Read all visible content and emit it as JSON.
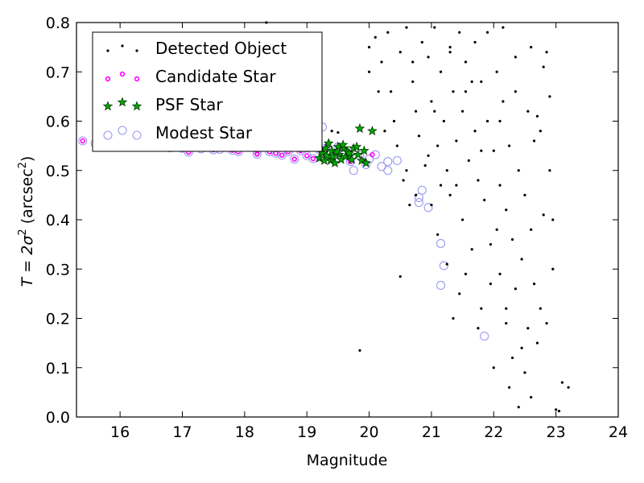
{
  "colors": {
    "detected": "#000000",
    "candidate": "#ff00ff",
    "psf_fill": "#00aa00",
    "psf_edge": "#003300",
    "modest": "#9a9af0"
  },
  "chart_data": {
    "type": "scatter",
    "title": "",
    "xlabel": "Magnitude",
    "ylabel_main": "T = 2σ",
    "ylabel_sup": "2",
    "ylabel_rest": " (arcsec",
    "ylabel_sup2": "2",
    "ylabel_end": ")",
    "xlim": [
      15.3,
      24
    ],
    "ylim": [
      0.0,
      0.8
    ],
    "x_ticks": [
      "16",
      "17",
      "18",
      "19",
      "20",
      "21",
      "22",
      "23",
      "24"
    ],
    "y_ticks": [
      "0.0",
      "0.1",
      "0.2",
      "0.3",
      "0.4",
      "0.5",
      "0.6",
      "0.7",
      "0.8"
    ],
    "grid": false,
    "legend_position": "top-left",
    "legend": [
      {
        "key": "detected",
        "label": "Detected Object"
      },
      {
        "key": "candidate",
        "label": "Candidate Star"
      },
      {
        "key": "psf",
        "label": "PSF Star"
      },
      {
        "key": "modest",
        "label": "Modest Star"
      }
    ],
    "series": [
      {
        "name": "Modest Star",
        "points": [
          [
            15.4,
            0.56
          ],
          [
            15.6,
            0.555
          ],
          [
            15.8,
            0.555
          ],
          [
            16.0,
            0.552
          ],
          [
            16.2,
            0.55
          ],
          [
            16.4,
            0.548
          ],
          [
            16.6,
            0.548
          ],
          [
            16.8,
            0.546
          ],
          [
            17.0,
            0.545
          ],
          [
            17.1,
            0.537
          ],
          [
            17.3,
            0.544
          ],
          [
            17.5,
            0.542
          ],
          [
            17.6,
            0.543
          ],
          [
            17.8,
            0.541
          ],
          [
            17.9,
            0.538
          ],
          [
            18.2,
            0.54
          ],
          [
            18.2,
            0.533
          ],
          [
            18.4,
            0.538
          ],
          [
            18.5,
            0.535
          ],
          [
            18.6,
            0.531
          ],
          [
            18.7,
            0.538
          ],
          [
            18.8,
            0.523
          ],
          [
            18.9,
            0.54
          ],
          [
            19.0,
            0.53
          ],
          [
            19.1,
            0.524
          ],
          [
            19.15,
            0.57
          ],
          [
            19.2,
            0.542
          ],
          [
            19.25,
            0.588
          ],
          [
            19.3,
            0.545
          ],
          [
            19.35,
            0.532
          ],
          [
            19.4,
            0.525
          ],
          [
            19.5,
            0.548
          ],
          [
            19.6,
            0.535
          ],
          [
            19.7,
            0.518
          ],
          [
            19.75,
            0.5
          ],
          [
            19.85,
            0.53
          ],
          [
            19.95,
            0.512
          ],
          [
            20.0,
            0.523
          ],
          [
            20.1,
            0.532
          ],
          [
            20.2,
            0.508
          ],
          [
            20.3,
            0.518
          ],
          [
            20.3,
            0.5
          ],
          [
            20.45,
            0.52
          ],
          [
            20.8,
            0.435
          ],
          [
            20.8,
            0.445
          ],
          [
            20.85,
            0.46
          ],
          [
            20.95,
            0.425
          ],
          [
            21.15,
            0.352
          ],
          [
            21.2,
            0.307
          ],
          [
            21.15,
            0.267
          ],
          [
            21.85,
            0.164
          ]
        ]
      },
      {
        "name": "Candidate Star",
        "points": [
          [
            15.4,
            0.56
          ],
          [
            15.6,
            0.555
          ],
          [
            15.8,
            0.555
          ],
          [
            16.0,
            0.552
          ],
          [
            16.2,
            0.55
          ],
          [
            16.4,
            0.548
          ],
          [
            16.6,
            0.548
          ],
          [
            16.8,
            0.546
          ],
          [
            17.0,
            0.545
          ],
          [
            17.1,
            0.537
          ],
          [
            17.3,
            0.544
          ],
          [
            17.5,
            0.542
          ],
          [
            17.6,
            0.543
          ],
          [
            17.8,
            0.541
          ],
          [
            17.9,
            0.538
          ],
          [
            18.2,
            0.54
          ],
          [
            18.2,
            0.533
          ],
          [
            18.4,
            0.538
          ],
          [
            18.5,
            0.535
          ],
          [
            18.6,
            0.531
          ],
          [
            18.7,
            0.538
          ],
          [
            18.8,
            0.523
          ],
          [
            18.9,
            0.54
          ],
          [
            19.0,
            0.53
          ],
          [
            19.1,
            0.524
          ],
          [
            19.3,
            0.545
          ],
          [
            19.4,
            0.525
          ],
          [
            19.55,
            0.548
          ],
          [
            19.7,
            0.518
          ],
          [
            19.9,
            0.52
          ],
          [
            20.05,
            0.532
          ]
        ]
      },
      {
        "name": "PSF Star",
        "points": [
          [
            19.2,
            0.525
          ],
          [
            19.25,
            0.535
          ],
          [
            19.28,
            0.52
          ],
          [
            19.3,
            0.545
          ],
          [
            19.32,
            0.53
          ],
          [
            19.35,
            0.555
          ],
          [
            19.38,
            0.52
          ],
          [
            19.4,
            0.54
          ],
          [
            19.42,
            0.528
          ],
          [
            19.45,
            0.515
          ],
          [
            19.5,
            0.548
          ],
          [
            19.52,
            0.532
          ],
          [
            19.55,
            0.522
          ],
          [
            19.6,
            0.545
          ],
          [
            19.62,
            0.528
          ],
          [
            19.65,
            0.538
          ],
          [
            19.7,
            0.53
          ],
          [
            19.72,
            0.522
          ],
          [
            19.75,
            0.545
          ],
          [
            19.8,
            0.548
          ],
          [
            19.82,
            0.532
          ],
          [
            19.85,
            0.585
          ],
          [
            19.88,
            0.52
          ],
          [
            19.92,
            0.54
          ],
          [
            19.95,
            0.515
          ],
          [
            20.05,
            0.58
          ],
          [
            19.48,
            0.538
          ],
          [
            19.58,
            0.552
          ],
          [
            19.68,
            0.535
          ]
        ]
      },
      {
        "name": "Detected Object",
        "points": [
          [
            18.35,
            0.8
          ],
          [
            19.4,
            0.58
          ],
          [
            19.5,
            0.577
          ],
          [
            19.85,
            0.135
          ],
          [
            20.0,
            0.75
          ],
          [
            20.0,
            0.7
          ],
          [
            20.1,
            0.77
          ],
          [
            20.2,
            0.72
          ],
          [
            20.3,
            0.78
          ],
          [
            20.35,
            0.66
          ],
          [
            20.4,
            0.6
          ],
          [
            20.45,
            0.55
          ],
          [
            20.5,
            0.74
          ],
          [
            20.5,
            0.285
          ],
          [
            20.6,
            0.79
          ],
          [
            20.6,
            0.5
          ],
          [
            20.65,
            0.43
          ],
          [
            20.7,
            0.68
          ],
          [
            20.75,
            0.62
          ],
          [
            20.8,
            0.57
          ],
          [
            20.85,
            0.76
          ],
          [
            20.9,
            0.51
          ],
          [
            20.95,
            0.73
          ],
          [
            21.0,
            0.43
          ],
          [
            21.0,
            0.64
          ],
          [
            21.05,
            0.79
          ],
          [
            21.1,
            0.55
          ],
          [
            21.1,
            0.37
          ],
          [
            21.15,
            0.7
          ],
          [
            21.2,
            0.6
          ],
          [
            21.25,
            0.5
          ],
          [
            21.3,
            0.75
          ],
          [
            21.3,
            0.45
          ],
          [
            21.35,
            0.66
          ],
          [
            21.4,
            0.56
          ],
          [
            21.45,
            0.78
          ],
          [
            21.5,
            0.62
          ],
          [
            21.5,
            0.4
          ],
          [
            21.55,
            0.72
          ],
          [
            21.6,
            0.52
          ],
          [
            21.65,
            0.34
          ],
          [
            21.7,
            0.76
          ],
          [
            21.7,
            0.58
          ],
          [
            21.75,
            0.48
          ],
          [
            21.8,
            0.68
          ],
          [
            21.8,
            0.22
          ],
          [
            21.85,
            0.44
          ],
          [
            21.9,
            0.78
          ],
          [
            21.9,
            0.6
          ],
          [
            21.95,
            0.35
          ],
          [
            22.0,
            0.54
          ],
          [
            22.0,
            0.1
          ],
          [
            22.05,
            0.7
          ],
          [
            22.1,
            0.29
          ],
          [
            22.1,
            0.47
          ],
          [
            22.15,
            0.64
          ],
          [
            22.2,
            0.19
          ],
          [
            22.2,
            0.42
          ],
          [
            22.25,
            0.06
          ],
          [
            22.25,
            0.55
          ],
          [
            22.3,
            0.36
          ],
          [
            22.3,
            0.12
          ],
          [
            22.35,
            0.26
          ],
          [
            22.4,
            0.5
          ],
          [
            22.4,
            0.02
          ],
          [
            22.45,
            0.32
          ],
          [
            22.5,
            0.09
          ],
          [
            22.5,
            0.45
          ],
          [
            22.55,
            0.18
          ],
          [
            22.6,
            0.38
          ],
          [
            22.6,
            0.04
          ],
          [
            22.65,
            0.27
          ],
          [
            22.7,
            0.15
          ],
          [
            22.7,
            0.61
          ],
          [
            22.75,
            0.22
          ],
          [
            22.8,
            0.41
          ],
          [
            22.8,
            0.71
          ],
          [
            22.85,
            0.19
          ],
          [
            22.9,
            0.5
          ],
          [
            22.95,
            0.3
          ],
          [
            23.0,
            0.015
          ],
          [
            23.05,
            0.012
          ],
          [
            23.1,
            0.07
          ],
          [
            23.2,
            0.06
          ],
          [
            22.85,
            0.74
          ],
          [
            22.95,
            0.4
          ],
          [
            22.55,
            0.62
          ],
          [
            22.65,
            0.56
          ],
          [
            22.35,
            0.73
          ],
          [
            22.15,
            0.79
          ],
          [
            21.95,
            0.27
          ],
          [
            21.75,
            0.18
          ],
          [
            21.55,
            0.29
          ],
          [
            21.4,
            0.47
          ],
          [
            21.35,
            0.2
          ],
          [
            21.25,
            0.31
          ],
          [
            21.45,
            0.25
          ],
          [
            22.2,
            0.22
          ],
          [
            22.45,
            0.14
          ],
          [
            22.05,
            0.38
          ],
          [
            21.65,
            0.68
          ],
          [
            21.15,
            0.47
          ],
          [
            20.75,
            0.45
          ],
          [
            20.95,
            0.53
          ],
          [
            20.55,
            0.48
          ],
          [
            20.7,
            0.72
          ],
          [
            20.25,
            0.58
          ],
          [
            20.15,
            0.66
          ],
          [
            21.05,
            0.62
          ],
          [
            21.3,
            0.74
          ],
          [
            21.55,
            0.66
          ],
          [
            21.8,
            0.54
          ],
          [
            22.1,
            0.6
          ],
          [
            22.35,
            0.66
          ],
          [
            22.6,
            0.75
          ],
          [
            22.75,
            0.58
          ],
          [
            22.9,
            0.65
          ]
        ]
      }
    ]
  }
}
